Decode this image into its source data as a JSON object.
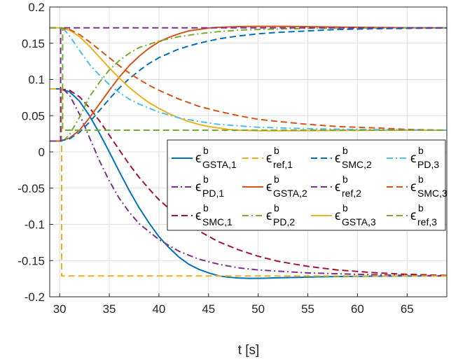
{
  "chart_data": {
    "type": "line",
    "xlabel": "t [s]",
    "ylabel": "",
    "xlim": [
      29,
      69
    ],
    "ylim": [
      -0.2,
      0.2
    ],
    "xticks": [
      30,
      35,
      40,
      45,
      50,
      55,
      60,
      65
    ],
    "yticks": [
      -0.2,
      -0.15,
      -0.1,
      -0.05,
      0,
      0.05,
      0.1,
      0.15,
      0.2
    ],
    "xtick_labels": [
      "30",
      "35",
      "40",
      "45",
      "50",
      "55",
      "60",
      "65"
    ],
    "ytick_labels": [
      "-0.2",
      "-0.15",
      "-0.1",
      "-0.05",
      "0",
      "0.05",
      "0.1",
      "0.15",
      "0.2"
    ],
    "grid": true,
    "legend_position": "right",
    "legend_columns": 4,
    "series": [
      {
        "key": "gsta1",
        "label_main": "ϵ",
        "label_sup": "b",
        "label_sub": "GSTA,1",
        "color": "#0072BD",
        "dash": "solid",
        "x": [
          29,
          30,
          31,
          32,
          33,
          34,
          35,
          36,
          37,
          38,
          39,
          40,
          41,
          42,
          43,
          44,
          45,
          46,
          47,
          48,
          49,
          50,
          51,
          52,
          54,
          56,
          58,
          60,
          62,
          64,
          66,
          69
        ],
        "y": [
          0.087,
          0.087,
          0.083,
          0.07,
          0.05,
          0.026,
          0.0,
          -0.027,
          -0.053,
          -0.077,
          -0.098,
          -0.117,
          -0.132,
          -0.145,
          -0.155,
          -0.162,
          -0.167,
          -0.171,
          -0.173,
          -0.174,
          -0.1745,
          -0.1745,
          -0.1742,
          -0.1738,
          -0.1732,
          -0.1725,
          -0.172,
          -0.1717,
          -0.1715,
          -0.1714,
          -0.1713,
          -0.1713
        ]
      },
      {
        "key": "pd1",
        "label_main": "ϵ",
        "label_sup": "b",
        "label_sub": "PD,1",
        "color": "#7E2F8E",
        "dash": "dashdot",
        "x": [
          29,
          30,
          30.5,
          31,
          32,
          33,
          34,
          35,
          36,
          37,
          38,
          40,
          42,
          44,
          46,
          48,
          50,
          55,
          60,
          65,
          69
        ],
        "y": [
          0.087,
          0.087,
          0.085,
          0.078,
          0.052,
          0.02,
          -0.012,
          -0.04,
          -0.064,
          -0.083,
          -0.099,
          -0.121,
          -0.137,
          -0.148,
          -0.155,
          -0.16,
          -0.163,
          -0.167,
          -0.169,
          -0.1705,
          -0.171
        ]
      },
      {
        "key": "smc1",
        "label_main": "ϵ",
        "label_sup": "b",
        "label_sub": "SMC,1",
        "color": "#A2142F",
        "dash": "dash",
        "x": [
          29,
          30,
          31,
          32,
          33,
          34,
          35,
          36,
          37,
          38,
          39,
          40,
          42,
          44,
          46,
          48,
          50,
          52,
          55,
          58,
          60,
          62,
          65,
          69
        ],
        "y": [
          0.087,
          0.087,
          0.085,
          0.076,
          0.061,
          0.043,
          0.023,
          0.003,
          -0.017,
          -0.035,
          -0.051,
          -0.066,
          -0.09,
          -0.109,
          -0.124,
          -0.135,
          -0.144,
          -0.151,
          -0.158,
          -0.163,
          -0.165,
          -0.167,
          -0.169,
          -0.1705
        ]
      },
      {
        "key": "ref1",
        "label_main": "ϵ",
        "label_sup": "b",
        "label_sub": "ref,1",
        "color": "#EDB120",
        "dash": "dash",
        "x": [
          29,
          30.2,
          30.2,
          69
        ],
        "y": [
          0.087,
          0.087,
          -0.1713,
          -0.1713
        ]
      },
      {
        "key": "gsta2",
        "label_main": "ϵ",
        "label_sup": "b",
        "label_sub": "GSTA,2",
        "color": "#D95319",
        "dash": "solid",
        "x": [
          29,
          30,
          31,
          32,
          33,
          34,
          35,
          36,
          37,
          38,
          39,
          40,
          41,
          42,
          43,
          44,
          45,
          46,
          47,
          48,
          49,
          50,
          52,
          54,
          56,
          58,
          60,
          62,
          65,
          69
        ],
        "y": [
          0.015,
          0.015,
          0.019,
          0.03,
          0.047,
          0.066,
          0.085,
          0.103,
          0.119,
          0.132,
          0.143,
          0.152,
          0.158,
          0.163,
          0.167,
          0.169,
          0.171,
          0.172,
          0.1725,
          0.173,
          0.1732,
          0.1733,
          0.1733,
          0.1731,
          0.1727,
          0.1723,
          0.172,
          0.1717,
          0.1714,
          0.1713
        ]
      },
      {
        "key": "pd2",
        "label_main": "ϵ",
        "label_sup": "b",
        "label_sub": "PD,2",
        "color": "#77AC30",
        "dash": "dashdot",
        "x": [
          29,
          30,
          30.5,
          31,
          32,
          33,
          34,
          35,
          36,
          37,
          38,
          40,
          42,
          44,
          46,
          48,
          50,
          55,
          60,
          65,
          69
        ],
        "y": [
          0.015,
          0.015,
          0.017,
          0.024,
          0.048,
          0.076,
          0.096,
          0.113,
          0.126,
          0.136,
          0.144,
          0.153,
          0.159,
          0.163,
          0.166,
          0.168,
          0.169,
          0.1705,
          0.171,
          0.1712,
          0.1713
        ]
      },
      {
        "key": "smc2",
        "label_main": "ϵ",
        "label_sup": "b",
        "label_sub": "SMC,2",
        "color": "#0072BD",
        "dash": "dash",
        "x": [
          29,
          30,
          31,
          32,
          33,
          34,
          35,
          36,
          37,
          38,
          39,
          40,
          42,
          44,
          46,
          48,
          50,
          52,
          55,
          58,
          60,
          62,
          65,
          69
        ],
        "y": [
          0.015,
          0.015,
          0.018,
          0.027,
          0.041,
          0.057,
          0.073,
          0.088,
          0.101,
          0.112,
          0.122,
          0.13,
          0.142,
          0.15,
          0.156,
          0.16,
          0.163,
          0.165,
          0.167,
          0.169,
          0.1695,
          0.17,
          0.1705,
          0.171
        ]
      },
      {
        "key": "ref2",
        "label_main": "ϵ",
        "label_sup": "b",
        "label_sub": "ref,2",
        "color": "#7E2F8E",
        "dash": "dash",
        "x": [
          29,
          30.1,
          30.1,
          69
        ],
        "y": [
          0.015,
          0.015,
          0.1713,
          0.1713
        ]
      },
      {
        "key": "gsta3",
        "label_main": "ϵ",
        "label_sup": "b",
        "label_sub": "GSTA,3",
        "color": "#EDB120",
        "dash": "solid",
        "x": [
          29,
          30,
          31,
          32,
          33,
          34,
          35,
          36,
          37,
          38,
          39,
          40,
          41,
          42,
          43,
          44,
          45,
          46,
          47,
          48,
          50,
          52,
          55,
          58,
          60,
          62,
          65,
          69
        ],
        "y": [
          0.1713,
          0.1713,
          0.168,
          0.159,
          0.146,
          0.131,
          0.116,
          0.102,
          0.089,
          0.078,
          0.068,
          0.06,
          0.053,
          0.047,
          0.042,
          0.038,
          0.035,
          0.033,
          0.031,
          0.03,
          0.0292,
          0.0292,
          0.0294,
          0.0296,
          0.0297,
          0.0298,
          0.0299,
          0.03
        ]
      },
      {
        "key": "pd3",
        "label_main": "ϵ",
        "label_sup": "b",
        "label_sub": "PD,3",
        "color": "#4DBEEE",
        "dash": "dashdot",
        "x": [
          29,
          30,
          30.5,
          31,
          32,
          33,
          34,
          35,
          36,
          37,
          38,
          40,
          42,
          44,
          46,
          48,
          50,
          55,
          60,
          65,
          69
        ],
        "y": [
          0.1713,
          0.1713,
          0.168,
          0.16,
          0.14,
          0.121,
          0.106,
          0.093,
          0.082,
          0.073,
          0.066,
          0.055,
          0.047,
          0.042,
          0.038,
          0.036,
          0.034,
          0.032,
          0.031,
          0.0305,
          0.03
        ]
      },
      {
        "key": "smc3",
        "label_main": "ϵ",
        "label_sup": "b",
        "label_sub": "SMC,3",
        "color": "#D95319",
        "dash": "dash",
        "x": [
          29,
          30,
          31,
          32,
          33,
          34,
          35,
          36,
          37,
          38,
          39,
          40,
          42,
          44,
          46,
          48,
          50,
          52,
          55,
          58,
          60,
          62,
          65,
          69
        ],
        "y": [
          0.1713,
          0.1713,
          0.169,
          0.162,
          0.152,
          0.141,
          0.13,
          0.119,
          0.109,
          0.1,
          0.092,
          0.085,
          0.073,
          0.063,
          0.056,
          0.05,
          0.045,
          0.042,
          0.038,
          0.035,
          0.034,
          0.033,
          0.031,
          0.03
        ]
      },
      {
        "key": "ref3",
        "label_main": "ϵ",
        "label_sup": "b",
        "label_sub": "ref,3",
        "color": "#77AC30",
        "dash": "dash",
        "x": [
          29,
          30.3,
          30.3,
          69
        ],
        "y": [
          0.1713,
          0.1713,
          0.03,
          0.03
        ]
      }
    ]
  }
}
